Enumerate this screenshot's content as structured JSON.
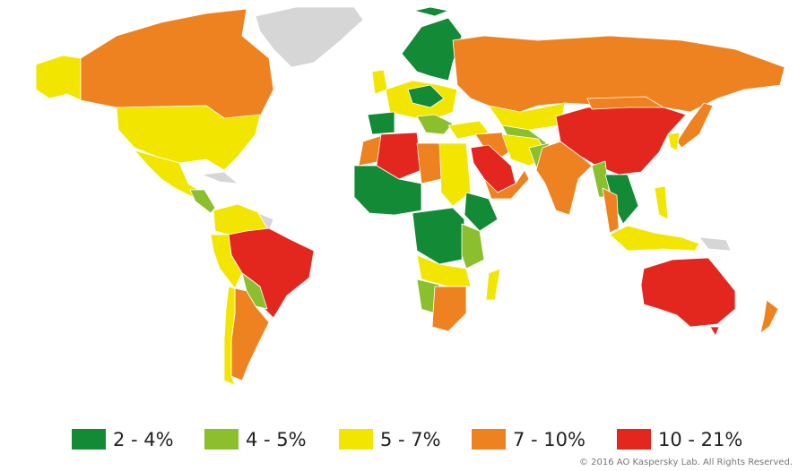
{
  "legend": {
    "items": [
      {
        "label": "2 - 4%",
        "color": "#138a36"
      },
      {
        "label": "4 - 5%",
        "color": "#8cbf2e"
      },
      {
        "label": "5 - 7%",
        "color": "#f2e600"
      },
      {
        "label": "7 - 10%",
        "color": "#ef8220"
      },
      {
        "label": "10 - 21%",
        "color": "#e3261e"
      }
    ]
  },
  "nodata_color": "#d6d6d6",
  "copyright": "© 2016 AO Kaspersky Lab. All Rights Reserved."
}
